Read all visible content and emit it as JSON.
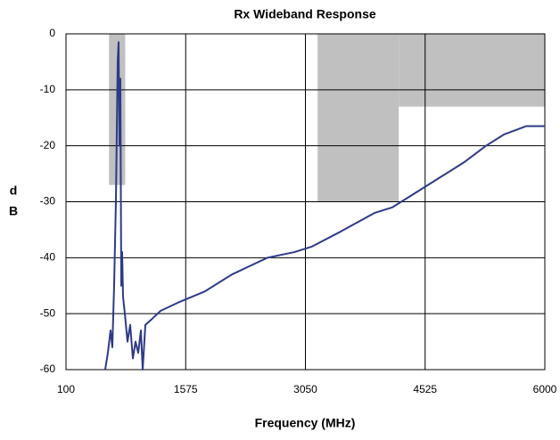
{
  "chart_data": {
    "type": "line",
    "title": "Rx Wideband Response",
    "xlabel": "Frequency (MHz)",
    "ylabel": [
      "d",
      "B"
    ],
    "xlim": [
      100,
      6000
    ],
    "ylim": [
      -60,
      0
    ],
    "xticks": [
      100,
      1575,
      3050,
      4525,
      6000
    ],
    "yticks": [
      0,
      -10,
      -20,
      -30,
      -40,
      -50,
      -60
    ],
    "grid": true,
    "mask_color": "#c0c0c0",
    "masks": [
      {
        "x": [
          630,
          830
        ],
        "floor": -27
      },
      {
        "x": [
          3200,
          4200
        ],
        "floor": -30
      },
      {
        "x": [
          4200,
          6000
        ],
        "floor": -13
      }
    ],
    "series": [
      {
        "color": "#2e3a87",
        "x": [
          583,
          616,
          649,
          671,
          693,
          715,
          737,
          748,
          759,
          770,
          781,
          792,
          803,
          825,
          858,
          891,
          924,
          957,
          990,
          1023,
          1045,
          1078,
          1155,
          1265,
          1484,
          1814,
          2144,
          2363,
          2583,
          2913,
          3132,
          3462,
          3901,
          4121,
          4341,
          4670,
          5000,
          5275,
          5494,
          5769,
          6000
        ],
        "values": [
          -60,
          -57,
          -53,
          -56,
          -45,
          -30,
          -5,
          -1.5,
          -20,
          -8,
          -45,
          -39,
          -47,
          -50,
          -55,
          -52,
          -58,
          -55,
          -57,
          -53,
          -60,
          -52,
          -51,
          -49.5,
          -48,
          -46,
          -43,
          -41.5,
          -40,
          -39,
          -38,
          -35.5,
          -32,
          -31,
          -29,
          -26,
          -23,
          -20,
          -18,
          -16.5,
          -16.5
        ]
      }
    ]
  }
}
